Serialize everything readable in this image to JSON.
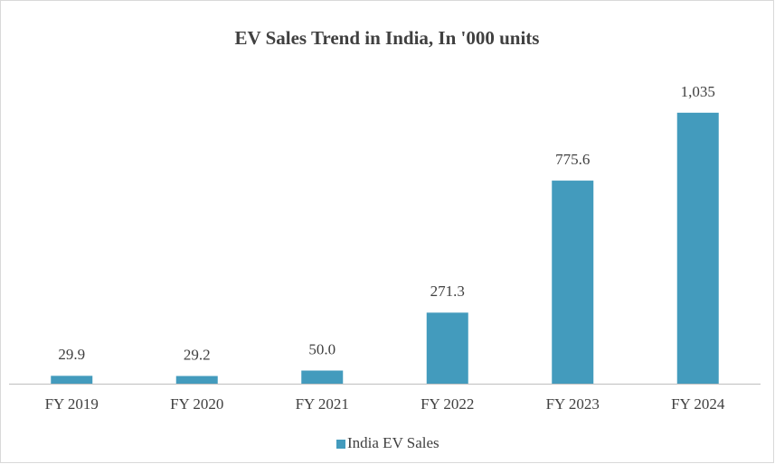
{
  "chart_data": {
    "type": "bar",
    "title": "EV Sales Trend in India, In '000 units",
    "categories": [
      "FY 2019",
      "FY 2020",
      "FY 2021",
      "FY 2022",
      "FY 2023",
      "FY 2024"
    ],
    "series": [
      {
        "name": "India EV Sales",
        "color": "#439bbd",
        "values": [
          29.9,
          29.2,
          50.0,
          271.3,
          775.6,
          1035
        ],
        "value_labels": [
          "29.9",
          "29.2",
          "50.0",
          "271.3",
          "775.6",
          "1,035"
        ]
      }
    ],
    "legend": "bottom"
  }
}
